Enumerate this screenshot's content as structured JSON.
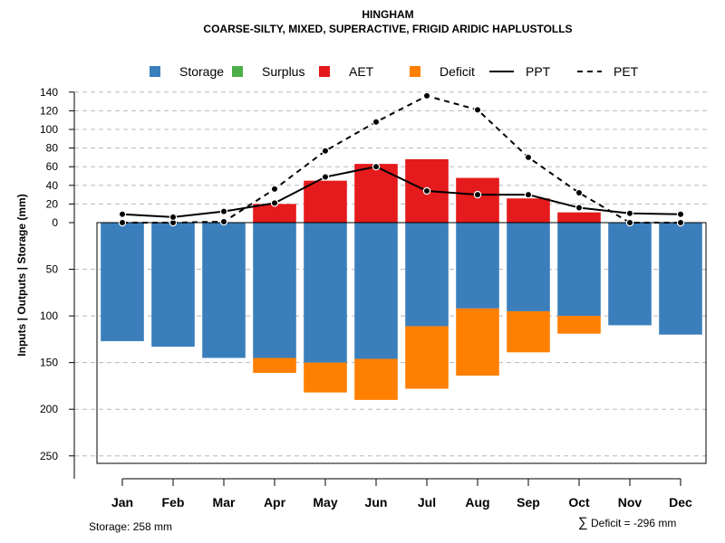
{
  "chart_data": {
    "type": "bar",
    "title": "HINGHAM",
    "subtitle": "COARSE-SILTY, MIXED, SUPERACTIVE, FRIGID ARIDIC HAPLUSTOLLS",
    "ylabel": "Inputs | Outputs | Storage    (mm)",
    "categories": [
      "Jan",
      "Feb",
      "Mar",
      "Apr",
      "May",
      "Jun",
      "Jul",
      "Aug",
      "Sep",
      "Oct",
      "Nov",
      "Dec"
    ],
    "y_ticks_positive": [
      0,
      20,
      40,
      60,
      80,
      100,
      120,
      140
    ],
    "y_ticks_negative": [
      50,
      100,
      150,
      200,
      250
    ],
    "ylim": [
      -258,
      140
    ],
    "grid": true,
    "legend": {
      "position": "top",
      "entries": [
        {
          "label": "Storage",
          "type": "box",
          "color": "#3a7fbc"
        },
        {
          "label": "Surplus",
          "type": "box",
          "color": "#4daf4a"
        },
        {
          "label": "AET",
          "type": "box",
          "color": "#e41a1c"
        },
        {
          "label": "Deficit",
          "type": "box",
          "color": "#ff7f00"
        },
        {
          "label": "PPT",
          "type": "line",
          "dash": "solid"
        },
        {
          "label": "PET",
          "type": "line",
          "dash": "dashed"
        }
      ]
    },
    "series": [
      {
        "name": "Storage",
        "color": "#3a7fbc",
        "direction": "below",
        "values": [
          127,
          133,
          145,
          145,
          150,
          146,
          111,
          92,
          95,
          100,
          110,
          120
        ]
      },
      {
        "name": "Deficit",
        "color": "#ff7f00",
        "direction": "below",
        "values": [
          0,
          0,
          0,
          16,
          32,
          44,
          67,
          72,
          44,
          19,
          0,
          0
        ]
      },
      {
        "name": "Surplus",
        "color": "#4daf4a",
        "direction": "above",
        "values": [
          0,
          0,
          0,
          0,
          0,
          0,
          0,
          0,
          0,
          0,
          0,
          0
        ]
      },
      {
        "name": "AET",
        "color": "#e41a1c",
        "direction": "above",
        "values": [
          0,
          0,
          0,
          20,
          45,
          63,
          68,
          48,
          26,
          11,
          0,
          0
        ]
      },
      {
        "name": "PPT",
        "type": "line",
        "dash": "solid",
        "values": [
          9,
          6,
          12,
          21,
          49,
          60,
          34,
          30,
          30,
          16,
          10,
          9
        ]
      },
      {
        "name": "PET",
        "type": "line",
        "dash": "dashed",
        "values": [
          0,
          0,
          1,
          36,
          77,
          108,
          136,
          121,
          70,
          32,
          0,
          0
        ]
      }
    ],
    "storage_capacity": 258,
    "footer": {
      "storage": "Storage: 258 mm",
      "deficit": "Deficit = -296 mm",
      "deficit_symbol": "∑"
    }
  }
}
